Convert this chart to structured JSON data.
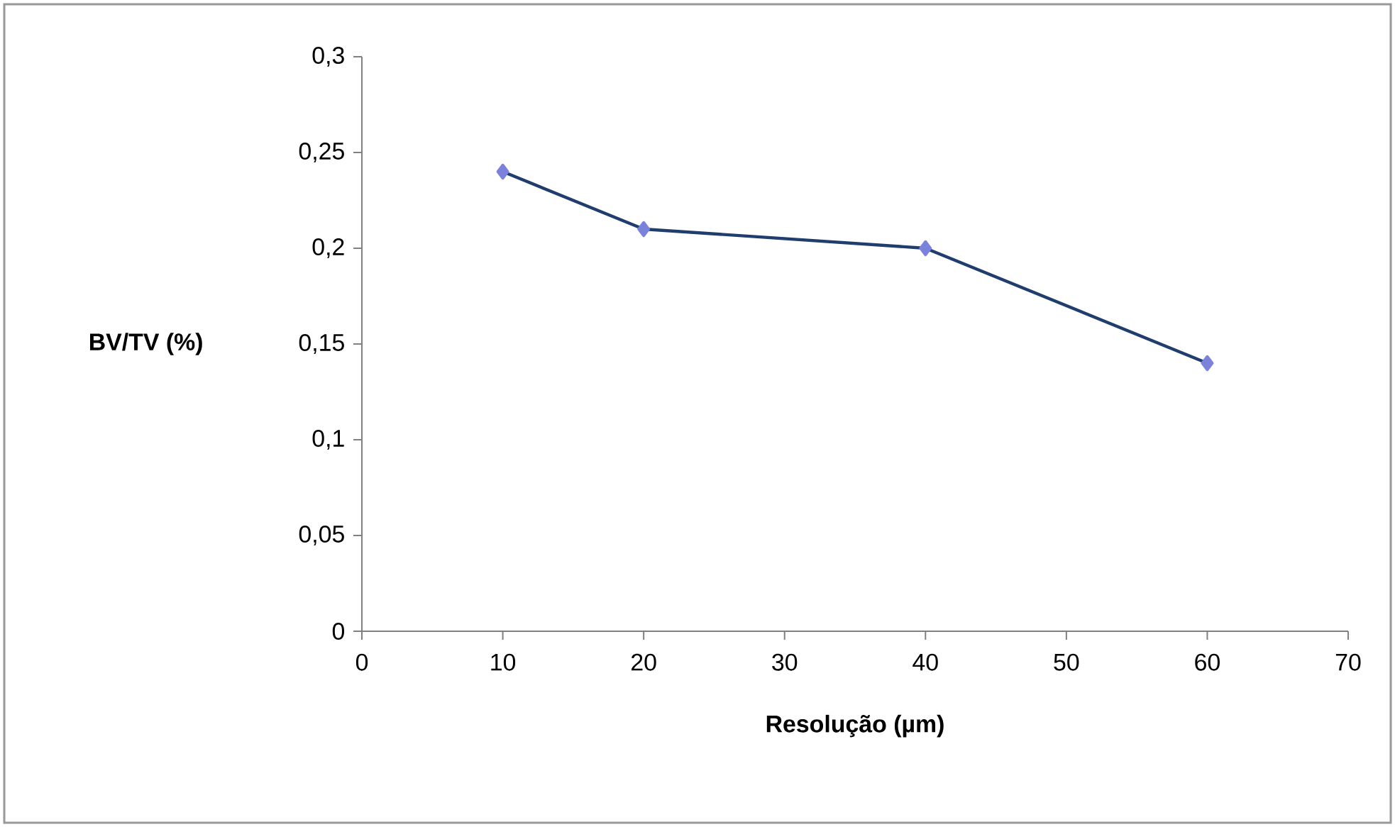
{
  "chart_data": {
    "type": "line",
    "xlabel": "Resolução (µm)",
    "ylabel": "BV/TV (%)",
    "series": [
      {
        "x": [
          10,
          20,
          40,
          60
        ],
        "values": [
          0.24,
          0.21,
          0.2,
          0.14
        ],
        "color": "#1f3d6d"
      }
    ],
    "xlim": [
      0,
      70
    ],
    "xticks": [
      0,
      10,
      20,
      30,
      40,
      50,
      60,
      70
    ],
    "ylim": [
      0,
      0.3
    ],
    "yticks": [
      {
        "value": 0,
        "label": "0"
      },
      {
        "value": 0.05,
        "label": "0,05"
      },
      {
        "value": 0.1,
        "label": "0,1"
      },
      {
        "value": 0.15,
        "label": "0,15"
      },
      {
        "value": 0.2,
        "label": "0,2"
      },
      {
        "value": 0.25,
        "label": "0,25"
      },
      {
        "value": 0.3,
        "label": "0,3"
      }
    ],
    "grid": false,
    "marker": "diamond",
    "line_style": "solid"
  }
}
